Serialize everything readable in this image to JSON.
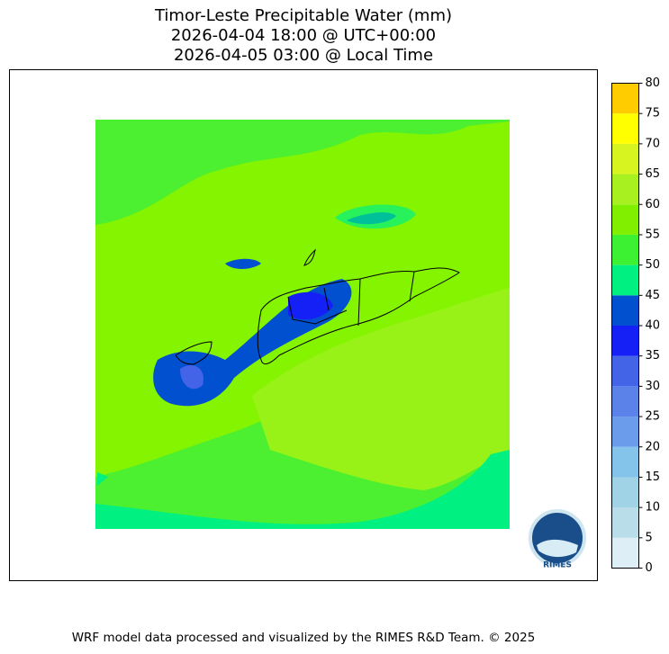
{
  "chart_data": {
    "type": "contour_map",
    "title": [
      "Timor-Leste Precipitable Water (mm)",
      "2026-04-04 18:00 @ UTC+00:00",
      "2026-04-05 03:00 @ Local Time"
    ],
    "levels": [
      0,
      5,
      10,
      15,
      20,
      25,
      30,
      35,
      40,
      45,
      50,
      55,
      60,
      65,
      70,
      75,
      80
    ],
    "colors": [
      "#ddeef6",
      "#b9dde9",
      "#a0d3e6",
      "#84c3ea",
      "#6b9ceb",
      "#5a82e8",
      "#4364e6",
      "#1420f5",
      "#0050d0",
      "#00f082",
      "#3cf032",
      "#80f000",
      "#a8f020",
      "#d8f420",
      "#ffff00",
      "#ffcc00"
    ],
    "clim": [
      0,
      80
    ],
    "logo_text": "RIMES",
    "footer": "WRF model data processed and visualized by the RIMES R&D Team. © 2025"
  }
}
